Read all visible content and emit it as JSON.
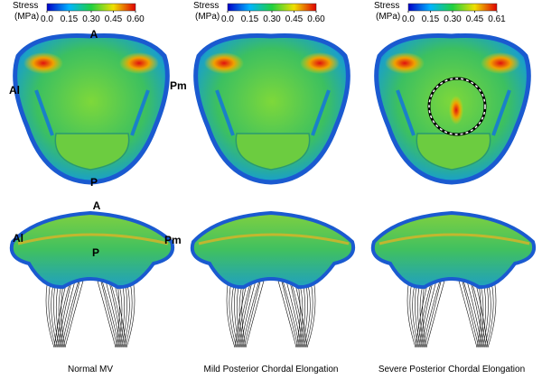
{
  "panels": [
    {
      "colorbar": {
        "title": [
          "Stress",
          "(MPa)"
        ],
        "ticks": [
          "0.0",
          "0.15",
          "0.30",
          "0.45",
          "0.60"
        ]
      },
      "caption": "Normal MV"
    },
    {
      "colorbar": {
        "title": [
          "Stress",
          "(MPa)"
        ],
        "ticks": [
          "0.0",
          "0.15",
          "0.30",
          "0.45",
          "0.60"
        ]
      },
      "caption": "Mild Posterior Chordal Elongation"
    },
    {
      "colorbar": {
        "title": [
          "Stress",
          "(MPa)"
        ],
        "ticks": [
          "0.0",
          "0.15",
          "0.30",
          "0.45",
          "0.61"
        ]
      },
      "caption": "Severe Posterior Chordal Elongation"
    }
  ],
  "top_labels": {
    "anterior": "A",
    "anterolateral": "Al",
    "posteromedial": "Pm",
    "posterior": "P"
  },
  "side_labels": {
    "anterior": "A",
    "anterolateral": "Al",
    "posteromedial": "Pm",
    "posterior": "P"
  }
}
